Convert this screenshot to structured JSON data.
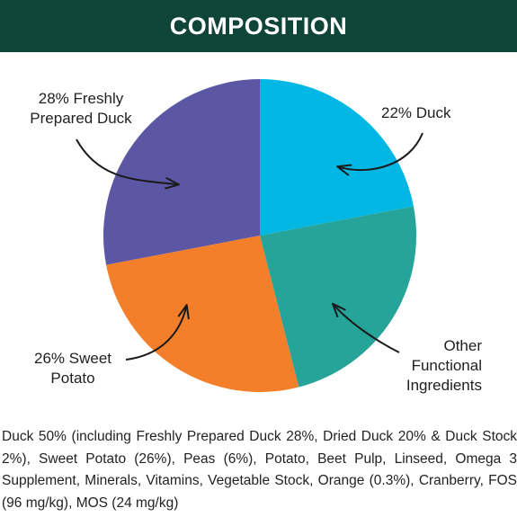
{
  "header": {
    "title": "COMPOSITION"
  },
  "colors": {
    "header_bg": "#0f4438",
    "duck": "#03b7e4",
    "other": "#26a49a",
    "sweet_potato": "#f47f2a",
    "fresh_duck": "#5c57a5",
    "arrow": "#1a1a1a"
  },
  "chart_data": {
    "type": "pie",
    "title": "",
    "start": "12 o'clock, clockwise",
    "slices": [
      {
        "key": "duck",
        "label_lines": [
          "22% Duck"
        ],
        "value": 22,
        "color": "#03b7e4"
      },
      {
        "key": "other",
        "label_lines": [
          "Other",
          "Functional",
          "Ingredients"
        ],
        "value": 24,
        "color": "#26a49a"
      },
      {
        "key": "sweet_potato",
        "label_lines": [
          "26% Sweet",
          "Potato"
        ],
        "value": 26,
        "color": "#f47f2a"
      },
      {
        "key": "fresh_duck",
        "label_lines": [
          "28% Freshly",
          "Prepared Duck"
        ],
        "value": 28,
        "color": "#5c57a5"
      }
    ]
  },
  "description": "Duck 50% (including Freshly Prepared Duck 28%, Dried Duck 20% & Duck Stock 2%), Sweet Potato (26%), Peas (6%), Potato, Beet Pulp, Linseed, Omega 3 Supplement, Minerals, Vitamins, Vegetable Stock, Orange (0.3%), Cranberry, FOS (96 mg/kg), MOS (24 mg/kg)"
}
